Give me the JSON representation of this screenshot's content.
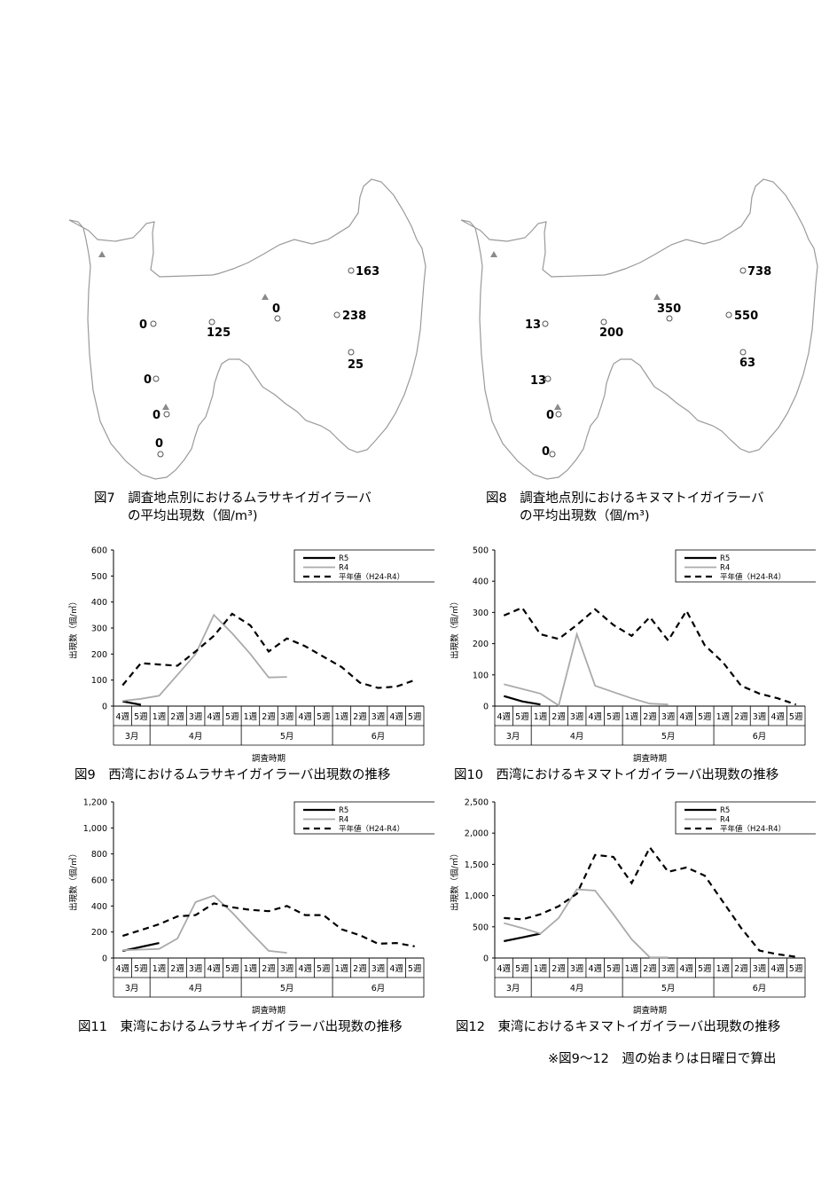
{
  "maps": [
    {
      "id": "map7",
      "labels": [
        "163",
        "0",
        "238",
        "0",
        "125",
        "25",
        "0",
        "0",
        "0"
      ],
      "caption_line1": "図7　調査地点別におけるムラサキイガイラーバ",
      "caption_line2": "の平均出現数（個/m³)"
    },
    {
      "id": "map8",
      "labels": [
        "738",
        "350",
        "550",
        "13",
        "200",
        "63",
        "13",
        "0",
        "0"
      ],
      "caption_line1": "図8　調査地点別におけるキヌマトイガイラーバ",
      "caption_line2": "の平均出現数（個/m³)"
    }
  ],
  "chart_data": [
    {
      "type": "line",
      "id": "fig9",
      "title": "図9　西湾におけるムラサキイガイラーバ出現数の推移",
      "ylabel": "出現数（個/㎥）",
      "xlabel": "調査時期",
      "ylim": [
        0,
        600
      ],
      "yticks": [
        "0",
        "100",
        "200",
        "300",
        "400",
        "500",
        "600"
      ],
      "weeks": [
        "4週",
        "5週",
        "1週",
        "2週",
        "3週",
        "4週",
        "5週",
        "1週",
        "2週",
        "3週",
        "4週",
        "5週",
        "1週",
        "2週",
        "3週",
        "4週",
        "5週"
      ],
      "months": [
        "3月",
        "4月",
        "5月",
        "6月"
      ],
      "series": [
        {
          "name": "R5",
          "values": [
            18,
            5,
            null,
            null,
            null,
            null,
            null,
            null,
            null,
            null,
            null,
            null,
            null,
            null,
            null,
            null,
            null
          ]
        },
        {
          "name": "R4",
          "values": [
            20,
            28,
            40,
            120,
            200,
            350,
            280,
            200,
            110,
            112,
            null,
            null,
            null,
            null,
            null,
            null,
            null
          ]
        },
        {
          "name": "平年値（H24-R4）",
          "values": [
            80,
            165,
            160,
            155,
            210,
            270,
            355,
            310,
            210,
            260,
            230,
            190,
            150,
            90,
            70,
            75,
            100
          ]
        }
      ]
    },
    {
      "type": "line",
      "id": "fig10",
      "title": "図10　西湾におけるキヌマトイガイラーバ出現数の推移",
      "ylabel": "出現数（個/㎥）",
      "xlabel": "調査時期",
      "ylim": [
        0,
        500
      ],
      "yticks": [
        "0",
        "100",
        "200",
        "300",
        "400",
        "500"
      ],
      "weeks": [
        "4週",
        "5週",
        "1週",
        "2週",
        "3週",
        "4週",
        "5週",
        "1週",
        "2週",
        "3週",
        "4週",
        "5週",
        "1週",
        "2週",
        "3週",
        "4週",
        "5週"
      ],
      "months": [
        "3月",
        "4月",
        "5月",
        "6月"
      ],
      "series": [
        {
          "name": "R5",
          "values": [
            32,
            15,
            5,
            null,
            null,
            null,
            null,
            null,
            null,
            null,
            null,
            null,
            null,
            null,
            null,
            null,
            null
          ]
        },
        {
          "name": "R4",
          "values": [
            70,
            55,
            40,
            2,
            230,
            65,
            45,
            25,
            8,
            5,
            null,
            null,
            null,
            null,
            null,
            null,
            null
          ]
        },
        {
          "name": "平年値（H24-R4）",
          "values": [
            290,
            315,
            230,
            215,
            260,
            310,
            260,
            225,
            285,
            210,
            305,
            195,
            140,
            65,
            40,
            25,
            5
          ]
        }
      ]
    },
    {
      "type": "line",
      "id": "fig11",
      "title": "図11　東湾におけるムラサキイガイラーバ出現数の推移",
      "ylabel": "出現数（個/㎥）",
      "xlabel": "調査時期",
      "ylim": [
        0,
        1200
      ],
      "yticks": [
        "0",
        "200",
        "400",
        "600",
        "800",
        "1,000",
        "1,200"
      ],
      "weeks": [
        "4週",
        "5週",
        "1週",
        "2週",
        "3週",
        "4週",
        "5週",
        "1週",
        "2週",
        "3週",
        "4週",
        "5週",
        "1週",
        "2週",
        "3週",
        "4週",
        "5週"
      ],
      "months": [
        "3月",
        "4月",
        "5月",
        "6月"
      ],
      "series": [
        {
          "name": "R5",
          "values": [
            55,
            85,
            115,
            null,
            null,
            null,
            null,
            null,
            null,
            null,
            null,
            null,
            null,
            null,
            null,
            null,
            null
          ]
        },
        {
          "name": "R4",
          "values": [
            60,
            65,
            70,
            150,
            430,
            480,
            350,
            200,
            55,
            40,
            null,
            null,
            null,
            null,
            null,
            null,
            null
          ]
        },
        {
          "name": "平年値（H24-R4）",
          "values": [
            170,
            215,
            260,
            320,
            330,
            420,
            390,
            370,
            360,
            400,
            330,
            330,
            220,
            175,
            110,
            115,
            90
          ]
        }
      ]
    },
    {
      "type": "line",
      "id": "fig12",
      "title": "図12　東湾におけるキヌマトイガイラーバ出現数の推移",
      "ylabel": "出現数（個/㎥）",
      "xlabel": "調査時期",
      "ylim": [
        0,
        2500
      ],
      "yticks": [
        "0",
        "500",
        "1,000",
        "1,500",
        "2,000",
        "2,500"
      ],
      "weeks": [
        "4週",
        "5週",
        "1週",
        "2週",
        "3週",
        "4週",
        "5週",
        "1週",
        "2週",
        "3週",
        "4週",
        "5週",
        "1週",
        "2週",
        "3週",
        "4週",
        "5週"
      ],
      "months": [
        "3月",
        "4月",
        "5月",
        "6月"
      ],
      "series": [
        {
          "name": "R5",
          "values": [
            270,
            330,
            390,
            null,
            null,
            null,
            null,
            null,
            null,
            null,
            null,
            null,
            null,
            null,
            null,
            null,
            null
          ]
        },
        {
          "name": "R4",
          "values": [
            560,
            480,
            390,
            640,
            1100,
            1080,
            700,
            300,
            10,
            10,
            null,
            null,
            null,
            null,
            null,
            null,
            null
          ]
        },
        {
          "name": "平年値（H24-R4）",
          "values": [
            640,
            620,
            700,
            830,
            1030,
            1650,
            1620,
            1200,
            1770,
            1380,
            1450,
            1320,
            900,
            480,
            120,
            60,
            20
          ]
        }
      ]
    }
  ],
  "footnote": "※図9～12　週の始まりは日曜日で算出"
}
